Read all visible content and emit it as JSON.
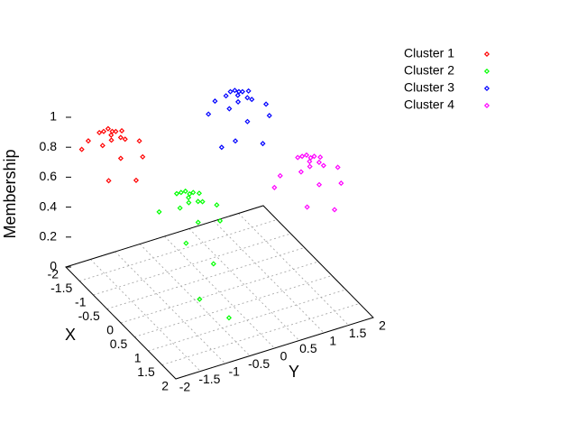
{
  "chart_data": {
    "type": "scatter3d",
    "xlabel": "X",
    "ylabel": "Y",
    "zlabel": "Membership",
    "xlim": [
      -2,
      2
    ],
    "ylim": [
      -2,
      2
    ],
    "zlim": [
      0,
      1
    ],
    "xticks": [
      -2,
      -1.5,
      -1,
      -0.5,
      0,
      0.5,
      1,
      1.5,
      2
    ],
    "yticks": [
      -2,
      -1.5,
      -1,
      -0.5,
      0,
      0.5,
      1,
      1.5,
      2
    ],
    "zticks": [
      0,
      0.2,
      0.4,
      0.6,
      0.8,
      1
    ],
    "grid": true,
    "legend": "top-right",
    "series": [
      {
        "name": "Cluster 1",
        "color": "#ff0000",
        "x": [
          -1.3,
          -1.1,
          -1.5,
          -1.2,
          -1.4,
          -0.9,
          -1.7,
          -1.0,
          -1.6,
          -1.8,
          -0.8,
          -1.3,
          -1.25,
          -1.35,
          -1.15,
          -1.45,
          -0.7,
          -1.9
        ],
        "y": [
          -1.45,
          -1.3,
          -1.6,
          -1.7,
          -1.2,
          -1.5,
          -1.4,
          -1.0,
          -1.9,
          -1.0,
          -1.8,
          -0.9,
          -1.5,
          -1.35,
          -1.55,
          -1.45,
          -1.3,
          -1.6
        ],
        "z": [
          0.98,
          0.95,
          0.95,
          0.93,
          0.94,
          0.88,
          0.9,
          0.82,
          0.85,
          0.8,
          0.78,
          0.86,
          0.97,
          0.96,
          0.96,
          0.97,
          0.75,
          0.82
        ]
      },
      {
        "name": "Cluster 2",
        "color": "#00ff00",
        "x": [
          1.03,
          1.23,
          0.83,
          1.13,
          0.93,
          1.43,
          0.63,
          1.33,
          0.73,
          0.53,
          1.53,
          1.03,
          1.08,
          0.98,
          1.18,
          0.88,
          1.63,
          1.6,
          1.25
        ],
        "y": [
          -1.18,
          -1.03,
          -1.33,
          -1.43,
          -0.93,
          -1.23,
          -1.13,
          -0.73,
          -1.63,
          -0.73,
          -1.53,
          -0.63,
          -1.23,
          -1.08,
          -1.28,
          -1.18,
          -1.03,
          -0.7,
          -1.1
        ],
        "z": [
          0.97,
          0.94,
          0.95,
          0.92,
          0.93,
          0.86,
          0.9,
          0.8,
          0.84,
          0.78,
          0.77,
          0.84,
          0.96,
          0.96,
          0.95,
          0.96,
          0.6,
          0.2,
          0.3
        ]
      },
      {
        "name": "Cluster 3",
        "color": "#0000ff",
        "x": [
          -1.27,
          -1.07,
          -1.47,
          -1.17,
          -1.37,
          -0.87,
          -1.67,
          -0.97,
          -1.57,
          -1.77,
          -0.77,
          -1.27,
          -1.22,
          -1.32,
          -1.12,
          -1.42,
          -0.67,
          -1.87,
          -1.0
        ],
        "y": [
          1.1,
          1.25,
          0.95,
          0.85,
          1.35,
          1.05,
          1.15,
          1.55,
          0.65,
          1.55,
          0.75,
          1.65,
          1.05,
          1.2,
          1.0,
          1.1,
          1.25,
          0.95,
          0.6
        ],
        "z": [
          0.99,
          0.96,
          0.94,
          0.92,
          0.95,
          0.87,
          0.91,
          0.84,
          0.83,
          0.81,
          0.79,
          0.85,
          0.98,
          0.97,
          0.96,
          0.97,
          0.74,
          0.83,
          0.72
        ]
      },
      {
        "name": "Cluster 4",
        "color": "#ff00ff",
        "x": [
          1.07,
          1.27,
          0.87,
          1.17,
          0.97,
          1.47,
          0.67,
          1.37,
          0.77,
          0.57,
          1.57,
          1.07,
          1.12,
          1.02,
          1.22,
          0.92,
          1.67,
          0.47
        ],
        "y": [
          1.25,
          1.4,
          1.1,
          1.0,
          1.5,
          1.2,
          1.3,
          1.7,
          0.8,
          1.7,
          0.9,
          1.8,
          1.2,
          1.35,
          1.15,
          1.25,
          1.4,
          0.85
        ],
        "z": [
          0.97,
          0.94,
          0.95,
          0.92,
          0.93,
          0.87,
          0.9,
          0.81,
          0.84,
          0.8,
          0.77,
          0.85,
          0.96,
          0.96,
          0.95,
          0.96,
          0.72,
          0.7
        ]
      }
    ]
  }
}
